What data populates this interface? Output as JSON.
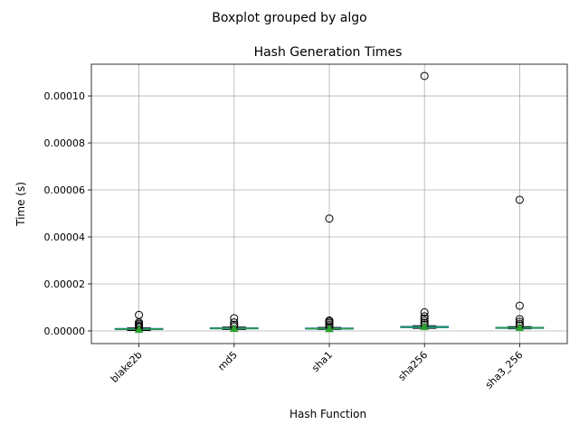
{
  "chart_data": {
    "type": "boxplot",
    "suptitle": "Boxplot grouped by algo",
    "title": "Hash Generation Times",
    "xlabel": "Hash Function",
    "ylabel": "Time (s)",
    "ylim": [
      -5.4e-06,
      0.0001135
    ],
    "yticks": [
      0,
      2e-05,
      4e-05,
      6e-05,
      8e-05,
      0.0001
    ],
    "ytick_labels": [
      "0.00000",
      "0.00002",
      "0.00004",
      "0.00006",
      "0.00008",
      "0.00010"
    ],
    "grid": true,
    "categories": [
      "blake2b",
      "md5",
      "sha1",
      "sha256",
      "sha3_256"
    ],
    "boxes": [
      {
        "whislo": 2e-07,
        "q1": 6e-07,
        "med": 8e-07,
        "q3": 1e-06,
        "whishi": 1.3e-06,
        "mean": 5e-07,
        "fliers": [
          6.8e-06,
          3.6e-06,
          3e-06,
          2.4e-06,
          1.9e-06,
          1.5e-06
        ]
      },
      {
        "whislo": 6e-07,
        "q1": 9e-07,
        "med": 1.1e-06,
        "q3": 1.3e-06,
        "whishi": 1.6e-06,
        "mean": 9e-07,
        "fliers": [
          5.4e-06,
          3.6e-06,
          2.6e-06,
          1.9e-06
        ]
      },
      {
        "whislo": 6e-07,
        "q1": 8e-07,
        "med": 1e-06,
        "q3": 1.2e-06,
        "whishi": 1.5e-06,
        "mean": 8e-07,
        "fliers": [
          4.78e-05,
          4.4e-06,
          4e-06,
          3.4e-06,
          2.7e-06,
          2e-06
        ]
      },
      {
        "whislo": 1.1e-06,
        "q1": 1.4e-06,
        "med": 1.6e-06,
        "q3": 1.9e-06,
        "whishi": 2.2e-06,
        "mean": 1.7e-06,
        "fliers": [
          0.0001085,
          7.9e-06,
          6.2e-06,
          5.3e-06,
          4.3e-06,
          3.4e-06,
          2.7e-06
        ]
      },
      {
        "whislo": 9e-07,
        "q1": 1.1e-06,
        "med": 1.3e-06,
        "q3": 1.5e-06,
        "whishi": 1.8e-06,
        "mean": 1.3e-06,
        "fliers": [
          5.58e-05,
          1.07e-05,
          5e-06,
          3.9e-06,
          3e-06,
          2.3e-06
        ]
      }
    ]
  },
  "colors": {
    "box": "#1f77b4",
    "median": "#2ca02c",
    "whisker": "#1f77b4",
    "cap": "#000000",
    "mean": "#2ca02c",
    "flier": "#000000",
    "grid": "#b0b0b0"
  }
}
